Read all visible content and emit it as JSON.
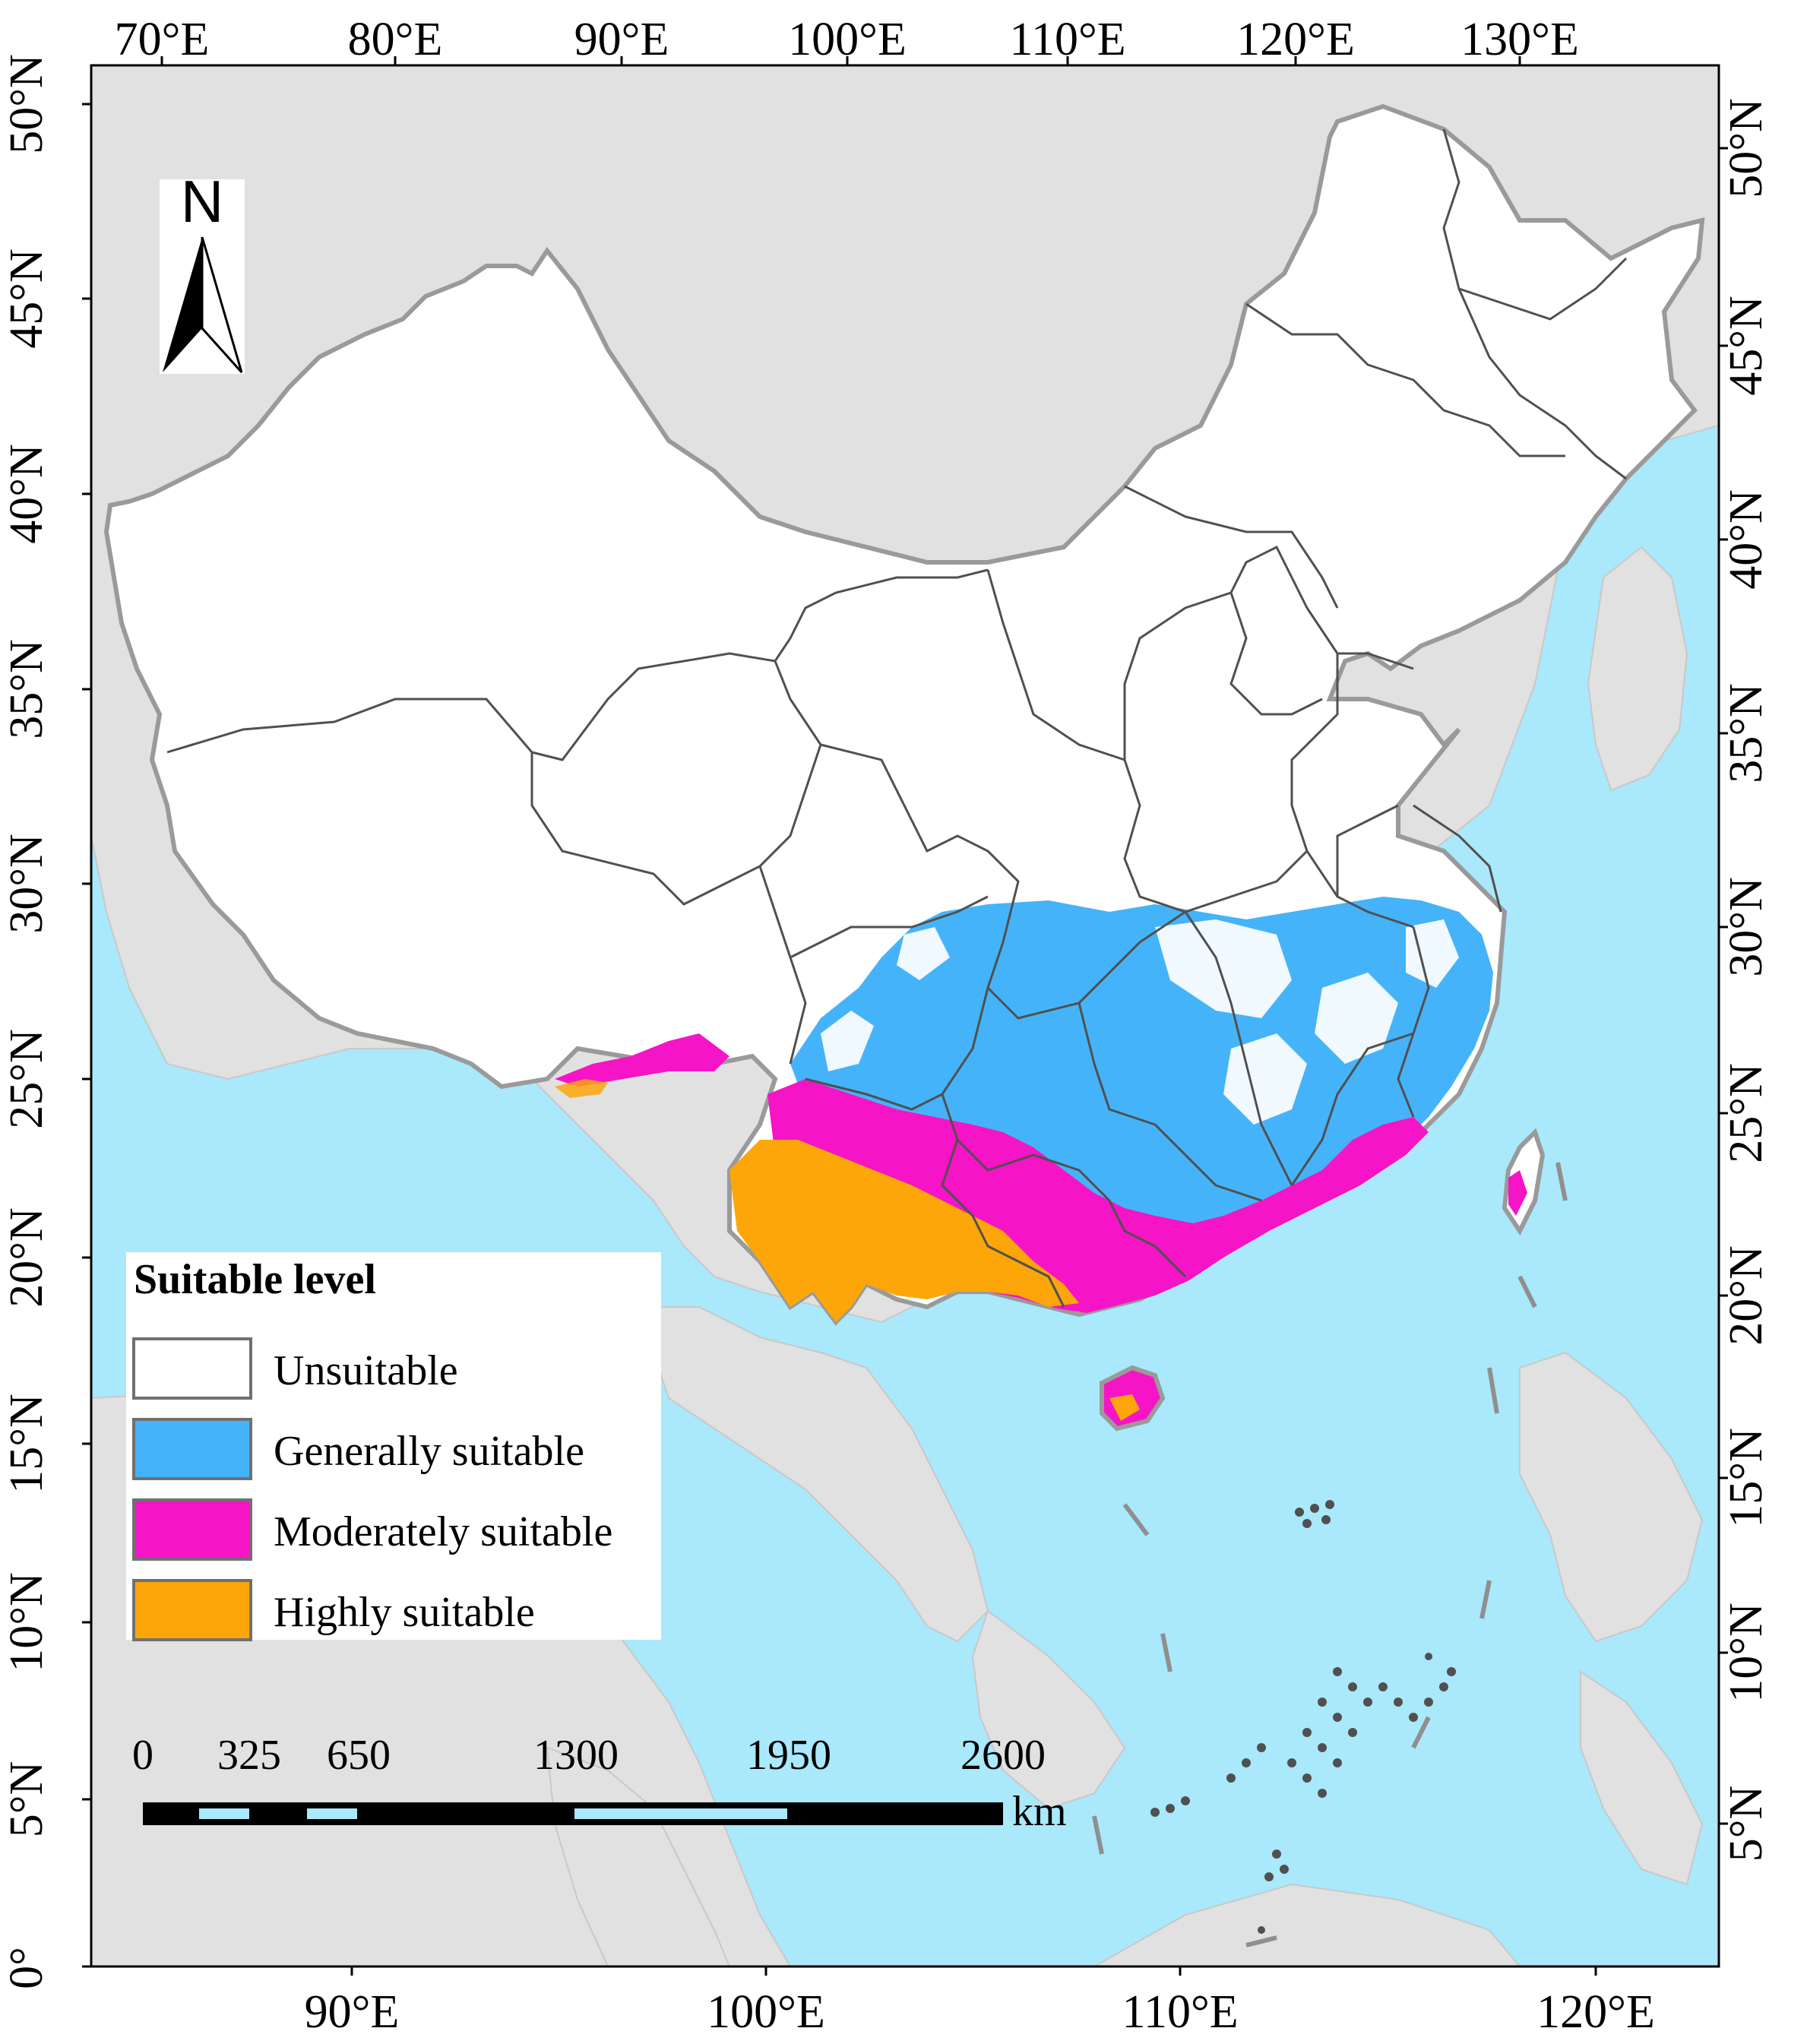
{
  "map": {
    "top_axis_labels": [
      "70°E",
      "80°E",
      "90°E",
      "100°E",
      "110°E",
      "120°E",
      "130°E"
    ],
    "bottom_axis_labels": [
      "90°E",
      "100°E",
      "110°E",
      "120°E"
    ],
    "left_axis_labels": [
      "50°N",
      "45°N",
      "40°N",
      "35°N",
      "30°N",
      "25°N",
      "20°N",
      "15°N",
      "10°N",
      "5°N",
      "0°"
    ],
    "right_axis_labels": [
      "50°N",
      "45°N",
      "40°N",
      "35°N",
      "30°N",
      "25°N",
      "20°N",
      "15°N",
      "10°N",
      "5°N"
    ],
    "colors": {
      "ocean": "#aae8fb",
      "land_outside": "#e1e1e1",
      "unsuitable": "#ffffff",
      "generally_suitable": "#45b3f9",
      "moderately_suitable": "#f514c6",
      "highly_suitable": "#fca60a",
      "border": "#505050",
      "coast_outline": "#9a9a9a"
    }
  },
  "north_arrow": {
    "label": "N"
  },
  "legend": {
    "title": "Suitable level",
    "items": [
      {
        "label": "Unsuitable",
        "color": "#ffffff"
      },
      {
        "label": "Generally suitable",
        "color": "#45b3f9"
      },
      {
        "label": "Moderately suitable",
        "color": "#f514c6"
      },
      {
        "label": "Highly suitable",
        "color": "#fca60a"
      }
    ]
  },
  "scale_bar": {
    "labels": [
      "0",
      "325",
      "650",
      "1300",
      "1950",
      "2600"
    ],
    "unit": "km"
  }
}
